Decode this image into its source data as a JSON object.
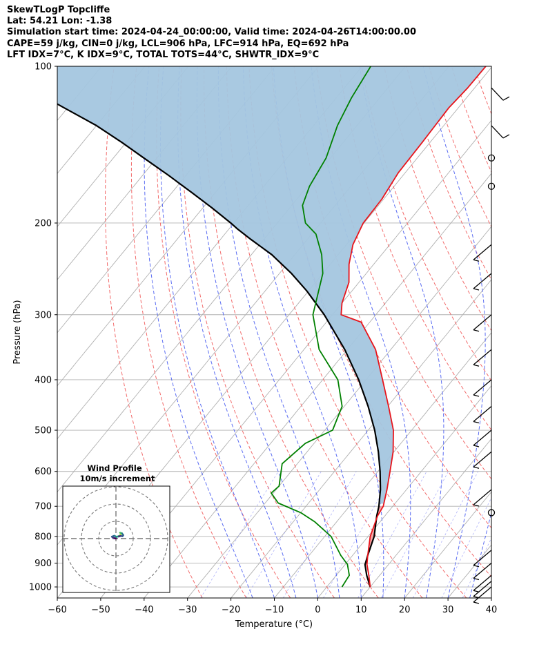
{
  "header": {
    "title": "SkewTLogP Topcliffe",
    "location": "Lat: 54.21   Lon: -1.38",
    "times": "Simulation start time: 2024-04-24_00:00:00, Valid time: 2024-04-26T14:00:00.00",
    "indices_1": "CAPE=59 j/kg, CIN=0 j/kg, LCL=906 hPa, LFC=914 hPa, EQ=692 hPa",
    "indices_2": "LFT IDX=7°C, K IDX=9°C, TOTAL TOTS=44°C, SHWTR_IDX=9°C"
  },
  "chart_data": {
    "type": "line",
    "xlabel": "Temperature (°C)",
    "ylabel": "Pressure (hPa)",
    "xlim": [
      -60,
      40
    ],
    "ylim": [
      1050,
      100
    ],
    "log_y": true,
    "skew": true,
    "grid": true,
    "x_ticks": [
      -60,
      -50,
      -40,
      -30,
      -20,
      -10,
      0,
      10,
      20,
      30,
      40
    ],
    "y_ticks": [
      1000,
      900,
      800,
      700,
      600,
      500,
      400,
      300,
      200,
      100
    ],
    "temperature": {
      "color": "#e8141b",
      "points": [
        [
          10.0,
          1000
        ],
        [
          7.5,
          950
        ],
        [
          5.0,
          905
        ],
        [
          3.5,
          870
        ],
        [
          0.5,
          800
        ],
        [
          -1.7,
          730
        ],
        [
          -2.2,
          700
        ],
        [
          -4.5,
          650
        ],
        [
          -7.2,
          600
        ],
        [
          -10.2,
          550
        ],
        [
          -14.2,
          500
        ],
        [
          -19.8,
          450
        ],
        [
          -26.2,
          400
        ],
        [
          -33.5,
          350
        ],
        [
          -42.0,
          310
        ],
        [
          -48.0,
          300
        ],
        [
          -50.0,
          285
        ],
        [
          -52.3,
          260
        ],
        [
          -55.7,
          240
        ],
        [
          -58.5,
          220
        ],
        [
          -60.2,
          200
        ],
        [
          -60.4,
          180
        ],
        [
          -61.6,
          160
        ],
        [
          -61.8,
          140
        ],
        [
          -62.2,
          120
        ],
        [
          -61.6,
          110
        ],
        [
          -61.5,
          100
        ]
      ]
    },
    "dewpoint": {
      "color": "#008000",
      "points": [
        [
          3.5,
          1000
        ],
        [
          3.0,
          950
        ],
        [
          0.5,
          905
        ],
        [
          -2.7,
          870
        ],
        [
          -8.5,
          800
        ],
        [
          -15.0,
          750
        ],
        [
          -20.0,
          720
        ],
        [
          -27.0,
          690
        ],
        [
          -30.5,
          660
        ],
        [
          -30.0,
          640
        ],
        [
          -33.5,
          580
        ],
        [
          -32.0,
          530
        ],
        [
          -28.2,
          500
        ],
        [
          -30.5,
          450
        ],
        [
          -36.5,
          400
        ],
        [
          -46.5,
          350
        ],
        [
          -54.5,
          300
        ],
        [
          -60.0,
          250
        ],
        [
          -63.8,
          230
        ],
        [
          -69.0,
          210
        ],
        [
          -73.5,
          200
        ],
        [
          -77.5,
          185
        ],
        [
          -79.5,
          170
        ],
        [
          -81.0,
          150
        ],
        [
          -84.5,
          130
        ],
        [
          -86.5,
          115
        ],
        [
          -88.0,
          100
        ]
      ]
    },
    "parcel": {
      "color": "#000000",
      "points": [
        [
          10.0,
          1000
        ],
        [
          7.0,
          950
        ],
        [
          4.6,
          906
        ],
        [
          3.5,
          870
        ],
        [
          1.4,
          800
        ],
        [
          -1.9,
          730
        ],
        [
          -3.2,
          700
        ],
        [
          -6.0,
          650
        ],
        [
          -9.5,
          600
        ],
        [
          -13.6,
          550
        ],
        [
          -18.5,
          500
        ],
        [
          -24.5,
          450
        ],
        [
          -31.7,
          400
        ],
        [
          -40.6,
          350
        ],
        [
          -51.9,
          300
        ],
        [
          -60.4,
          270
        ],
        [
          -67.2,
          250
        ],
        [
          -75.3,
          230
        ],
        [
          -83.0,
          215
        ],
        [
          -88.2,
          205
        ],
        [
          -90.7,
          200
        ],
        [
          -97.9,
          187
        ],
        [
          -105.3,
          175
        ],
        [
          -114.0,
          162
        ],
        [
          -123.0,
          150
        ],
        [
          -131.0,
          140
        ],
        [
          -140.0,
          130
        ],
        [
          -151.0,
          120
        ],
        [
          -158.0,
          114
        ],
        [
          -163.0,
          110
        ],
        [
          -171.0,
          105
        ],
        [
          -176.0,
          102
        ],
        [
          -179.5,
          100
        ]
      ]
    },
    "cape_shading_color": "#a4c6df",
    "cin_shading_color": "#f5a3a3",
    "dry_adiabat_color": "#f26b6b",
    "moist_adiabat_color": "#5a6cf2",
    "mixing_ratio_color": "#7a7ef5",
    "isotherm_color": "#b0b0b0",
    "winds": [
      {
        "p": 1000,
        "barbs": "upper-right"
      },
      {
        "p": 975,
        "barbs": "upper-right"
      },
      {
        "p": 950,
        "barbs": "upper-right"
      },
      {
        "p": 900,
        "barbs": "upper-right"
      },
      {
        "p": 850,
        "barbs": "upper-right"
      },
      {
        "p": 720,
        "barbs": "calm"
      },
      {
        "p": 650,
        "barbs": "upper-right"
      },
      {
        "p": 550,
        "barbs": "upper-right"
      },
      {
        "p": 500,
        "barbs": "upper-right"
      },
      {
        "p": 450,
        "barbs": "upper-right"
      },
      {
        "p": 400,
        "barbs": "upper-right"
      },
      {
        "p": 350,
        "barbs": "upper-right"
      },
      {
        "p": 300,
        "barbs": "upper-right"
      },
      {
        "p": 250,
        "barbs": "upper-right"
      },
      {
        "p": 220,
        "barbs": "upper-right"
      },
      {
        "p": 170,
        "barbs": "calm"
      },
      {
        "p": 150,
        "barbs": "calm"
      },
      {
        "p": 130,
        "barbs": "upper-left"
      },
      {
        "p": 110,
        "barbs": "upper-left"
      }
    ],
    "hodograph": {
      "title": "Wind Profile",
      "subtitle": "10m/s increment",
      "ring_spacing_ms": 10,
      "rings": 3,
      "trace": [
        [
          0,
          0
        ],
        [
          -1.5,
          0.4
        ],
        [
          -2.3,
          1.1
        ],
        [
          -1.0,
          1.6
        ],
        [
          0.4,
          1.0
        ],
        [
          1.6,
          1.4
        ],
        [
          2.5,
          1.8
        ],
        [
          2.9,
          2.9
        ],
        [
          2.4,
          3.4
        ],
        [
          3.5,
          3.0
        ],
        [
          4.2,
          2.0
        ],
        [
          3.8,
          1.4
        ],
        [
          2.6,
          1.5
        ],
        [
          1.6,
          1.2
        ]
      ]
    }
  }
}
